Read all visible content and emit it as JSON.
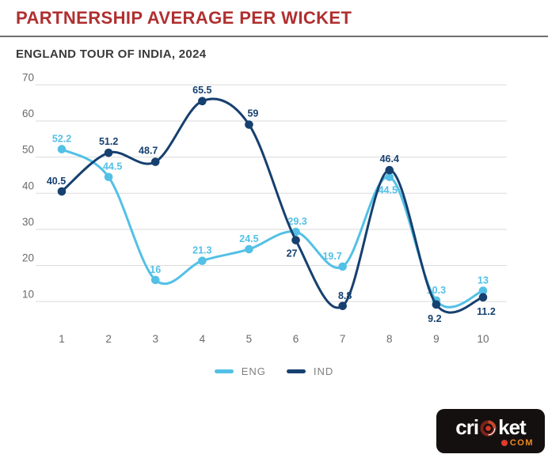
{
  "header": {
    "title": "PARTNERSHIP AVERAGE PER WICKET",
    "subtitle": "ENGLAND TOUR OF INDIA, 2024"
  },
  "colors": {
    "title": "#B02F2F",
    "subtitle": "#3A3A3A",
    "separator": "#6F6F6F",
    "eng": "#53C0E6",
    "ind": "#16406F",
    "grid": "#DADADA",
    "axis_text": "#6A6A6A",
    "legend_text": "#7F7F7F",
    "logo_bg": "#151010",
    "logo_com_orange": "#F08A1D",
    "logo_dot_red": "#E23A2B"
  },
  "chart_data": {
    "type": "line",
    "title": "PARTNERSHIP AVERAGE PER WICKET",
    "subtitle": "ENGLAND TOUR OF INDIA, 2024",
    "categories": [
      1,
      2,
      3,
      4,
      5,
      6,
      7,
      8,
      9,
      10
    ],
    "xlabel": "",
    "ylabel": "",
    "ylim": [
      0,
      70
    ],
    "yticks": [
      10,
      20,
      30,
      40,
      50,
      60,
      70
    ],
    "grid": true,
    "legend_position": "bottom",
    "series": [
      {
        "name": "ENG",
        "color": "#53C0E6",
        "values": [
          52.2,
          44.5,
          16,
          21.3,
          24.5,
          29.3,
          19.7,
          44.5,
          10.3,
          13
        ],
        "label_offsets": [
          [
            0,
            -9
          ],
          [
            5,
            -9
          ],
          [
            0,
            -9
          ],
          [
            0,
            -9
          ],
          [
            0,
            -9
          ],
          [
            2,
            -9
          ],
          [
            -13,
            -9
          ],
          [
            -2,
            21
          ],
          [
            0,
            -9
          ],
          [
            0,
            -9
          ]
        ]
      },
      {
        "name": "IND",
        "color": "#16406F",
        "values": [
          40.5,
          51.2,
          48.7,
          65.5,
          59,
          27,
          8.8,
          46.4,
          9.2,
          11.2
        ],
        "label_offsets": [
          [
            -7,
            -9
          ],
          [
            0,
            -10
          ],
          [
            -9,
            -10
          ],
          [
            0,
            -10
          ],
          [
            5,
            -10
          ],
          [
            -5,
            21
          ],
          [
            3,
            -9
          ],
          [
            0,
            -10
          ],
          [
            -2,
            22
          ],
          [
            4,
            22
          ]
        ]
      }
    ]
  },
  "legend": {
    "items": [
      {
        "label": "ENG",
        "color": "#53C0E6"
      },
      {
        "label": "IND",
        "color": "#16406F"
      }
    ]
  },
  "logo": {
    "part1": "cri",
    "part2": "ket",
    "suffix": "COM"
  }
}
